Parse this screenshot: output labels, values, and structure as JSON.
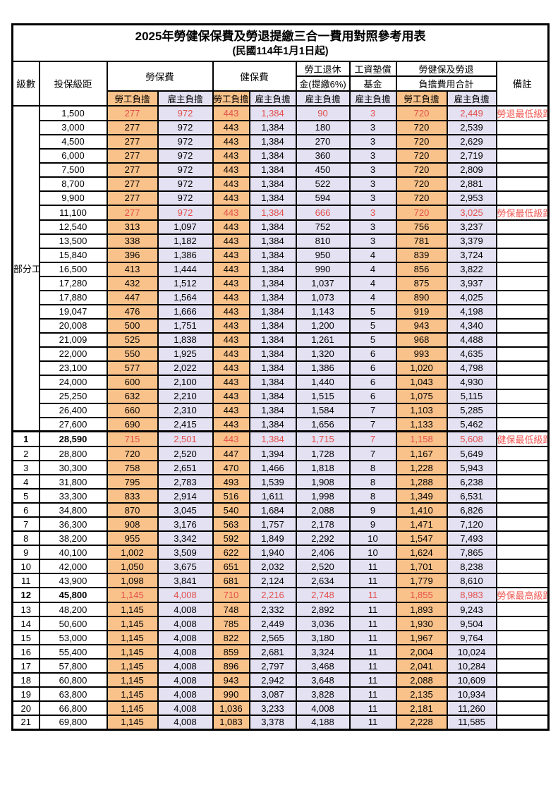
{
  "title": "2025年勞健保保費及勞退提繳三合一費用對照參考用表",
  "subtitle": "(民國114年1月1日起)",
  "colors": {
    "employee_bg": "#F9C28A",
    "employer_bg": "#E3E1F2",
    "highlight_red": "#E34F4B",
    "border": "#000000"
  },
  "header": {
    "level": "級數",
    "bracket": "投保級距",
    "labor_fee": "勞保費",
    "health_fee": "健保費",
    "pension_line1": "勞工退休",
    "pension_line2": "金(提繳6%)",
    "wage_fund_line1": "工資墊償",
    "wage_fund_line2": "基金",
    "total_line1": "勞健保及勞退",
    "total_line2": "負擔費用合計",
    "remark": "備註",
    "employee": "勞工負擔",
    "employer": "雇主負擔"
  },
  "part_time_label": "部分工時",
  "part_time_row_count": 23,
  "rows": [
    {
      "level": "",
      "bracket": "1,500",
      "values": [
        "277",
        "972",
        "443",
        "1,384",
        "90",
        "3",
        "720",
        "2,449"
      ],
      "remark": "勞退最低級距",
      "red": true,
      "bold": false
    },
    {
      "level": "",
      "bracket": "3,000",
      "values": [
        "277",
        "972",
        "443",
        "1,384",
        "180",
        "3",
        "720",
        "2,539"
      ],
      "remark": "",
      "red": false,
      "bold": false
    },
    {
      "level": "",
      "bracket": "4,500",
      "values": [
        "277",
        "972",
        "443",
        "1,384",
        "270",
        "3",
        "720",
        "2,629"
      ],
      "remark": "",
      "red": false,
      "bold": false
    },
    {
      "level": "",
      "bracket": "6,000",
      "values": [
        "277",
        "972",
        "443",
        "1,384",
        "360",
        "3",
        "720",
        "2,719"
      ],
      "remark": "",
      "red": false,
      "bold": false
    },
    {
      "level": "",
      "bracket": "7,500",
      "values": [
        "277",
        "972",
        "443",
        "1,384",
        "450",
        "3",
        "720",
        "2,809"
      ],
      "remark": "",
      "red": false,
      "bold": false
    },
    {
      "level": "",
      "bracket": "8,700",
      "values": [
        "277",
        "972",
        "443",
        "1,384",
        "522",
        "3",
        "720",
        "2,881"
      ],
      "remark": "",
      "red": false,
      "bold": false
    },
    {
      "level": "",
      "bracket": "9,900",
      "values": [
        "277",
        "972",
        "443",
        "1,384",
        "594",
        "3",
        "720",
        "2,953"
      ],
      "remark": "",
      "red": false,
      "bold": false
    },
    {
      "level": "",
      "bracket": "11,100",
      "values": [
        "277",
        "972",
        "443",
        "1,384",
        "666",
        "3",
        "720",
        "3,025"
      ],
      "remark": "勞保最低級距",
      "red": true,
      "bold": false
    },
    {
      "level": "",
      "bracket": "12,540",
      "values": [
        "313",
        "1,097",
        "443",
        "1,384",
        "752",
        "3",
        "756",
        "3,237"
      ],
      "remark": "",
      "red": false,
      "bold": false
    },
    {
      "level": "",
      "bracket": "13,500",
      "values": [
        "338",
        "1,182",
        "443",
        "1,384",
        "810",
        "3",
        "781",
        "3,379"
      ],
      "remark": "",
      "red": false,
      "bold": false
    },
    {
      "level": "",
      "bracket": "15,840",
      "values": [
        "396",
        "1,386",
        "443",
        "1,384",
        "950",
        "4",
        "839",
        "3,724"
      ],
      "remark": "",
      "red": false,
      "bold": false
    },
    {
      "level": "",
      "bracket": "16,500",
      "values": [
        "413",
        "1,444",
        "443",
        "1,384",
        "990",
        "4",
        "856",
        "3,822"
      ],
      "remark": "",
      "red": false,
      "bold": false
    },
    {
      "level": "",
      "bracket": "17,280",
      "values": [
        "432",
        "1,512",
        "443",
        "1,384",
        "1,037",
        "4",
        "875",
        "3,937"
      ],
      "remark": "",
      "red": false,
      "bold": false
    },
    {
      "level": "",
      "bracket": "17,880",
      "values": [
        "447",
        "1,564",
        "443",
        "1,384",
        "1,073",
        "4",
        "890",
        "4,025"
      ],
      "remark": "",
      "red": false,
      "bold": false
    },
    {
      "level": "",
      "bracket": "19,047",
      "values": [
        "476",
        "1,666",
        "443",
        "1,384",
        "1,143",
        "5",
        "919",
        "4,198"
      ],
      "remark": "",
      "red": false,
      "bold": false
    },
    {
      "level": "",
      "bracket": "20,008",
      "values": [
        "500",
        "1,751",
        "443",
        "1,384",
        "1,200",
        "5",
        "943",
        "4,340"
      ],
      "remark": "",
      "red": false,
      "bold": false
    },
    {
      "level": "",
      "bracket": "21,009",
      "values": [
        "525",
        "1,838",
        "443",
        "1,384",
        "1,261",
        "5",
        "968",
        "4,488"
      ],
      "remark": "",
      "red": false,
      "bold": false
    },
    {
      "level": "",
      "bracket": "22,000",
      "values": [
        "550",
        "1,925",
        "443",
        "1,384",
        "1,320",
        "6",
        "993",
        "4,635"
      ],
      "remark": "",
      "red": false,
      "bold": false
    },
    {
      "level": "",
      "bracket": "23,100",
      "values": [
        "577",
        "2,022",
        "443",
        "1,384",
        "1,386",
        "6",
        "1,020",
        "4,798"
      ],
      "remark": "",
      "red": false,
      "bold": false
    },
    {
      "level": "",
      "bracket": "24,000",
      "values": [
        "600",
        "2,100",
        "443",
        "1,384",
        "1,440",
        "6",
        "1,043",
        "4,930"
      ],
      "remark": "",
      "red": false,
      "bold": false
    },
    {
      "level": "",
      "bracket": "25,250",
      "values": [
        "632",
        "2,210",
        "443",
        "1,384",
        "1,515",
        "6",
        "1,075",
        "5,115"
      ],
      "remark": "",
      "red": false,
      "bold": false
    },
    {
      "level": "",
      "bracket": "26,400",
      "values": [
        "660",
        "2,310",
        "443",
        "1,384",
        "1,584",
        "7",
        "1,103",
        "5,285"
      ],
      "remark": "",
      "red": false,
      "bold": false
    },
    {
      "level": "",
      "bracket": "27,600",
      "values": [
        "690",
        "2,415",
        "443",
        "1,384",
        "1,656",
        "7",
        "1,133",
        "5,462"
      ],
      "remark": "",
      "red": false,
      "bold": false
    },
    {
      "level": "1",
      "bracket": "28,590",
      "values": [
        "715",
        "2,501",
        "443",
        "1,384",
        "1,715",
        "7",
        "1,158",
        "5,608"
      ],
      "remark": "健保最低級距",
      "red": true,
      "bold": true
    },
    {
      "level": "2",
      "bracket": "28,800",
      "values": [
        "720",
        "2,520",
        "447",
        "1,394",
        "1,728",
        "7",
        "1,167",
        "5,649"
      ],
      "remark": "",
      "red": false,
      "bold": false
    },
    {
      "level": "3",
      "bracket": "30,300",
      "values": [
        "758",
        "2,651",
        "470",
        "1,466",
        "1,818",
        "8",
        "1,228",
        "5,943"
      ],
      "remark": "",
      "red": false,
      "bold": false
    },
    {
      "level": "4",
      "bracket": "31,800",
      "values": [
        "795",
        "2,783",
        "493",
        "1,539",
        "1,908",
        "8",
        "1,288",
        "6,238"
      ],
      "remark": "",
      "red": false,
      "bold": false
    },
    {
      "level": "5",
      "bracket": "33,300",
      "values": [
        "833",
        "2,914",
        "516",
        "1,611",
        "1,998",
        "8",
        "1,349",
        "6,531"
      ],
      "remark": "",
      "red": false,
      "bold": false
    },
    {
      "level": "6",
      "bracket": "34,800",
      "values": [
        "870",
        "3,045",
        "540",
        "1,684",
        "2,088",
        "9",
        "1,410",
        "6,826"
      ],
      "remark": "",
      "red": false,
      "bold": false
    },
    {
      "level": "7",
      "bracket": "36,300",
      "values": [
        "908",
        "3,176",
        "563",
        "1,757",
        "2,178",
        "9",
        "1,471",
        "7,120"
      ],
      "remark": "",
      "red": false,
      "bold": false
    },
    {
      "level": "8",
      "bracket": "38,200",
      "values": [
        "955",
        "3,342",
        "592",
        "1,849",
        "2,292",
        "10",
        "1,547",
        "7,493"
      ],
      "remark": "",
      "red": false,
      "bold": false
    },
    {
      "level": "9",
      "bracket": "40,100",
      "values": [
        "1,002",
        "3,509",
        "622",
        "1,940",
        "2,406",
        "10",
        "1,624",
        "7,865"
      ],
      "remark": "",
      "red": false,
      "bold": false
    },
    {
      "level": "10",
      "bracket": "42,000",
      "values": [
        "1,050",
        "3,675",
        "651",
        "2,032",
        "2,520",
        "11",
        "1,701",
        "8,238"
      ],
      "remark": "",
      "red": false,
      "bold": false
    },
    {
      "level": "11",
      "bracket": "43,900",
      "values": [
        "1,098",
        "3,841",
        "681",
        "2,124",
        "2,634",
        "11",
        "1,779",
        "8,610"
      ],
      "remark": "",
      "red": false,
      "bold": false
    },
    {
      "level": "12",
      "bracket": "45,800",
      "values": [
        "1,145",
        "4,008",
        "710",
        "2,216",
        "2,748",
        "11",
        "1,855",
        "8,983"
      ],
      "remark": "勞保最高級距",
      "red": true,
      "bold": true
    },
    {
      "level": "13",
      "bracket": "48,200",
      "values": [
        "1,145",
        "4,008",
        "748",
        "2,332",
        "2,892",
        "11",
        "1,893",
        "9,243"
      ],
      "remark": "",
      "red": false,
      "bold": false
    },
    {
      "level": "14",
      "bracket": "50,600",
      "values": [
        "1,145",
        "4,008",
        "785",
        "2,449",
        "3,036",
        "11",
        "1,930",
        "9,504"
      ],
      "remark": "",
      "red": false,
      "bold": false
    },
    {
      "level": "15",
      "bracket": "53,000",
      "values": [
        "1,145",
        "4,008",
        "822",
        "2,565",
        "3,180",
        "11",
        "1,967",
        "9,764"
      ],
      "remark": "",
      "red": false,
      "bold": false
    },
    {
      "level": "16",
      "bracket": "55,400",
      "values": [
        "1,145",
        "4,008",
        "859",
        "2,681",
        "3,324",
        "11",
        "2,004",
        "10,024"
      ],
      "remark": "",
      "red": false,
      "bold": false
    },
    {
      "level": "17",
      "bracket": "57,800",
      "values": [
        "1,145",
        "4,008",
        "896",
        "2,797",
        "3,468",
        "11",
        "2,041",
        "10,284"
      ],
      "remark": "",
      "red": false,
      "bold": false
    },
    {
      "level": "18",
      "bracket": "60,800",
      "values": [
        "1,145",
        "4,008",
        "943",
        "2,942",
        "3,648",
        "11",
        "2,088",
        "10,609"
      ],
      "remark": "",
      "red": false,
      "bold": false
    },
    {
      "level": "19",
      "bracket": "63,800",
      "values": [
        "1,145",
        "4,008",
        "990",
        "3,087",
        "3,828",
        "11",
        "2,135",
        "10,934"
      ],
      "remark": "",
      "red": false,
      "bold": false
    },
    {
      "level": "20",
      "bracket": "66,800",
      "values": [
        "1,145",
        "4,008",
        "1,036",
        "3,233",
        "4,008",
        "11",
        "2,181",
        "11,260"
      ],
      "remark": "",
      "red": false,
      "bold": false
    },
    {
      "level": "21",
      "bracket": "69,800",
      "values": [
        "1,145",
        "4,008",
        "1,083",
        "3,378",
        "4,188",
        "11",
        "2,228",
        "11,585"
      ],
      "remark": "",
      "red": false,
      "bold": false
    }
  ]
}
